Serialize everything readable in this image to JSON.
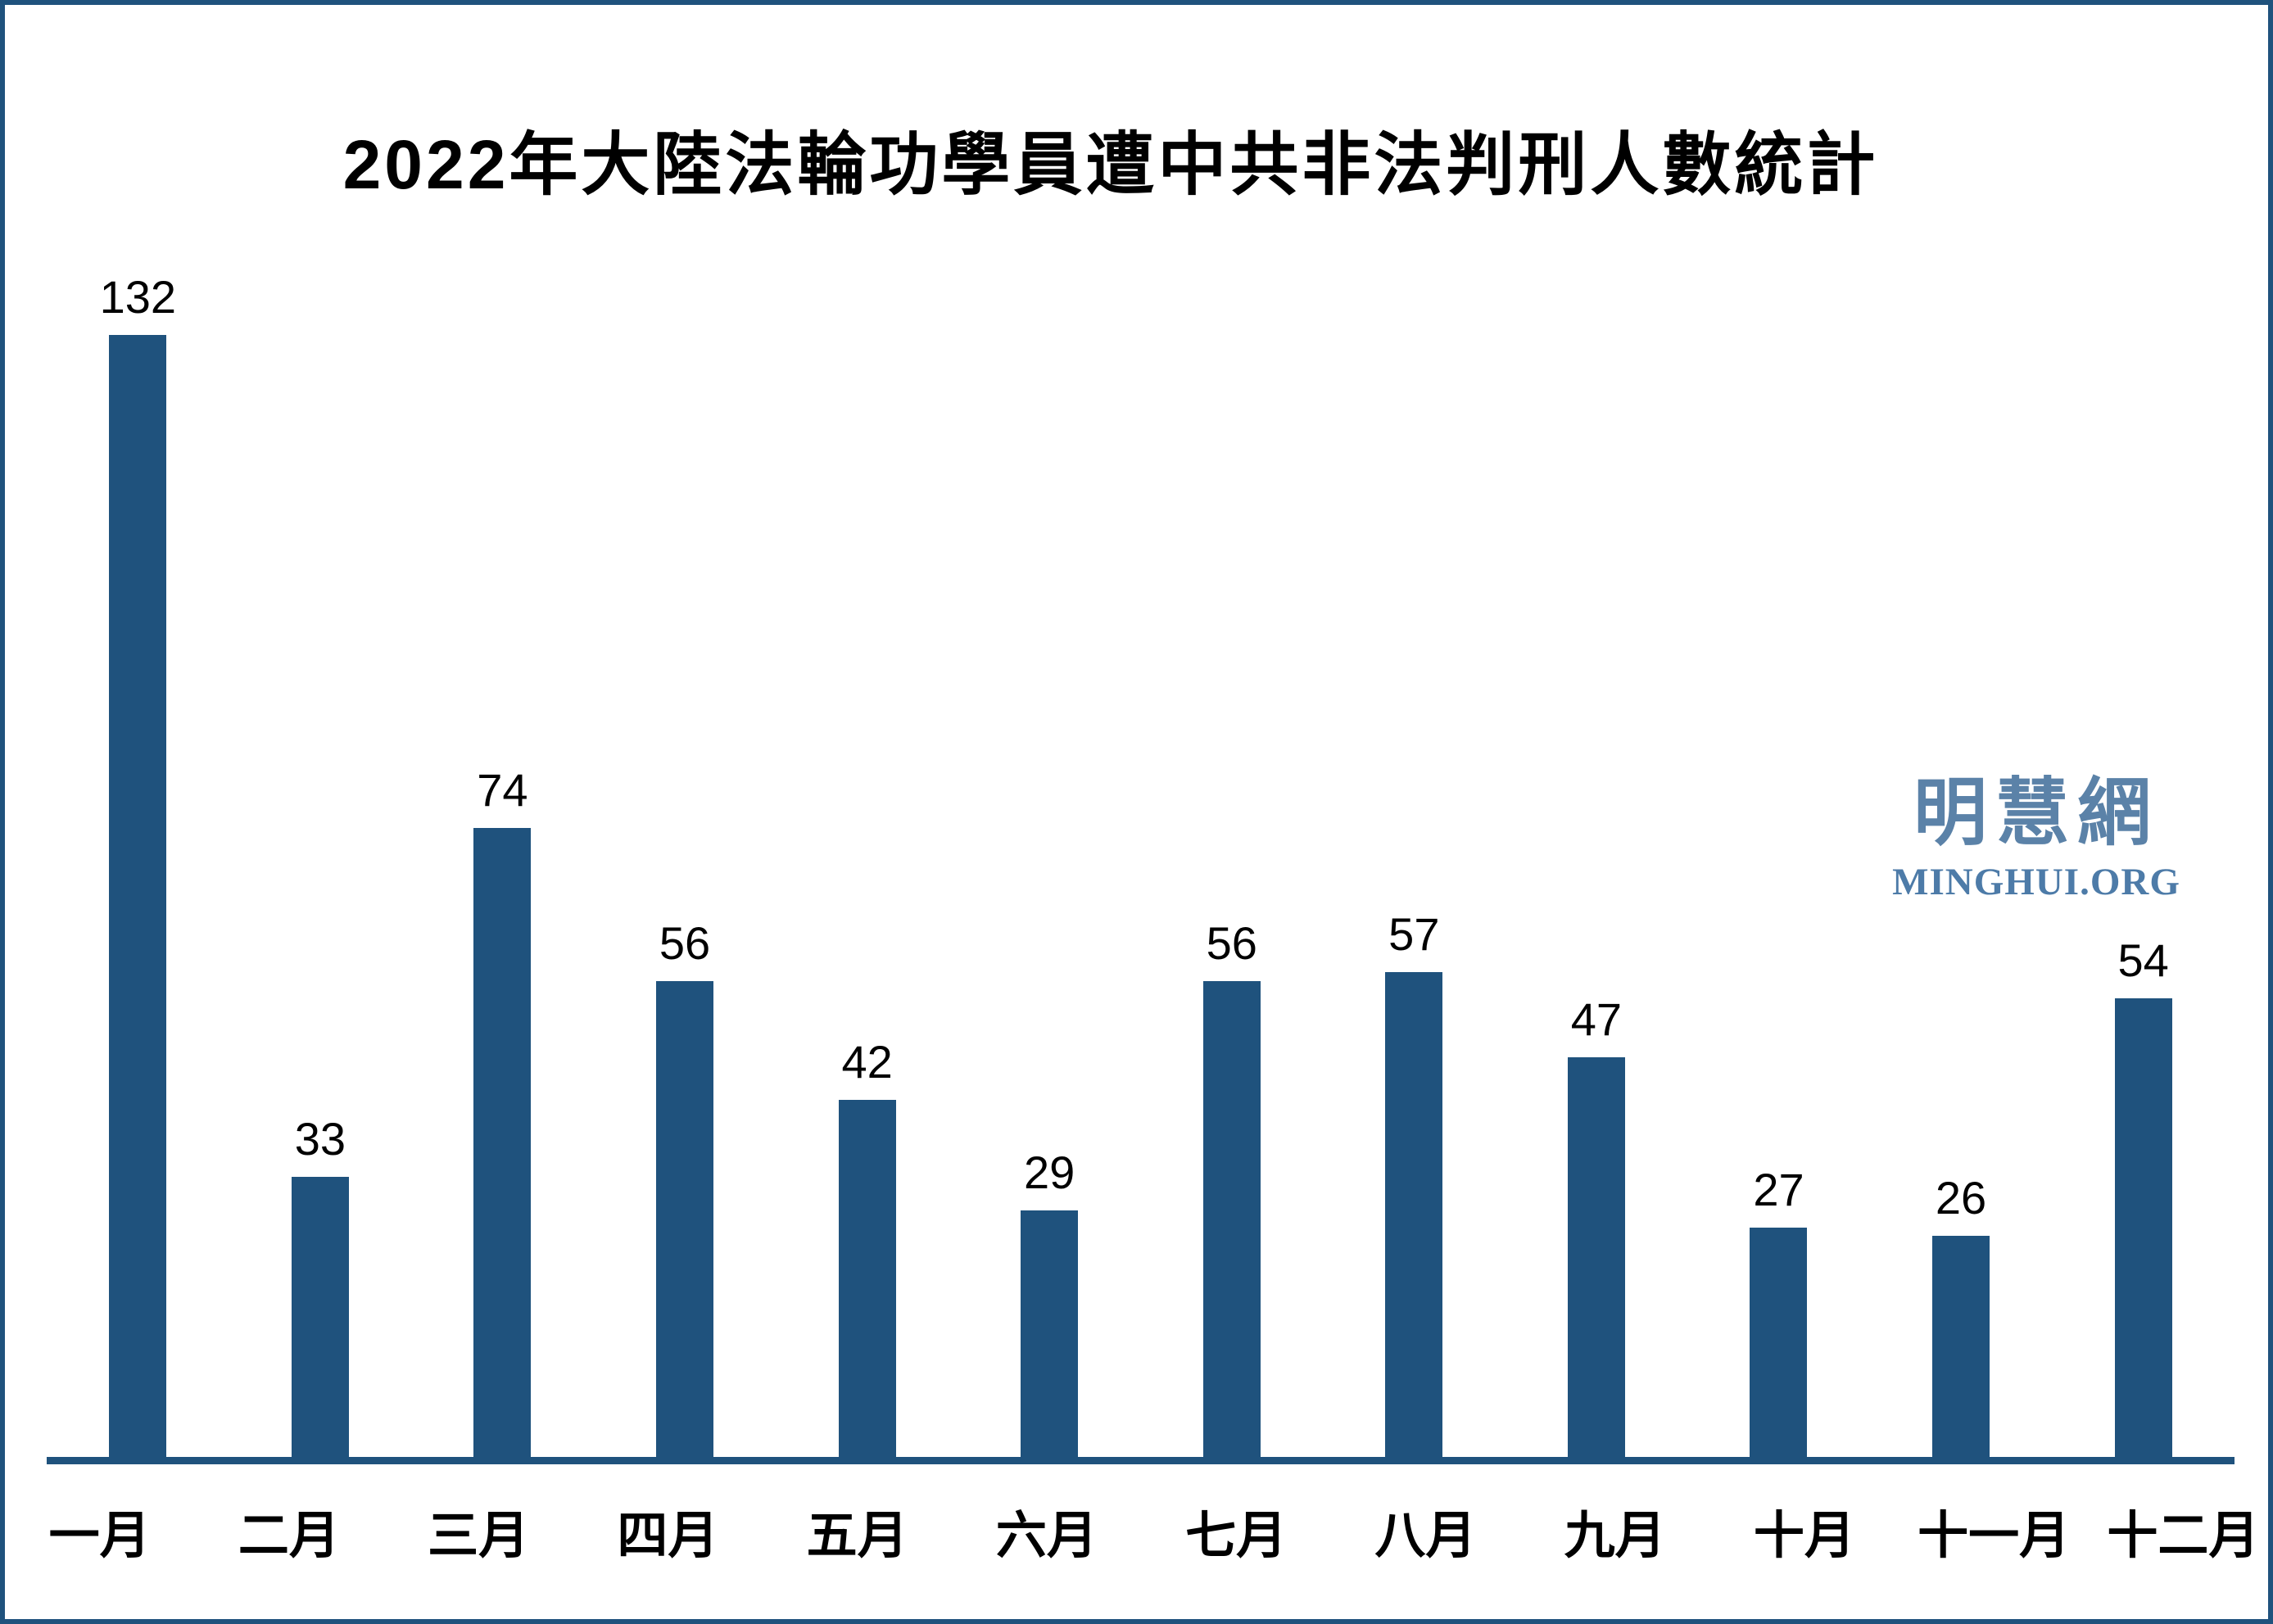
{
  "title": "2022年大陸法輪功學員遭中共非法判刑人數統計",
  "watermark": {
    "cjk": "明慧網",
    "latin": "MINGHUI.ORG",
    "cjk_color": "#5b82a8",
    "latin_color": "#4d7ba8"
  },
  "colors": {
    "bar": "#1f527d",
    "axis": "#1f527d",
    "frame_border": "#1f527d",
    "background": "#ffffff",
    "text": "#000000"
  },
  "chart_data": {
    "type": "bar",
    "title": "2022年大陸法輪功學員遭中共非法判刑人數統計",
    "categories": [
      "一月",
      "二月",
      "三月",
      "四月",
      "五月",
      "六月",
      "七月",
      "八月",
      "九月",
      "十月",
      "十一月",
      "十二月"
    ],
    "values": [
      132,
      33,
      74,
      56,
      42,
      29,
      56,
      57,
      47,
      27,
      26,
      54
    ],
    "xlabel": "",
    "ylabel": "",
    "ylim": [
      0,
      140
    ],
    "grid": false,
    "legend": null,
    "data_labels": true,
    "bar_color": "#1f527d"
  }
}
